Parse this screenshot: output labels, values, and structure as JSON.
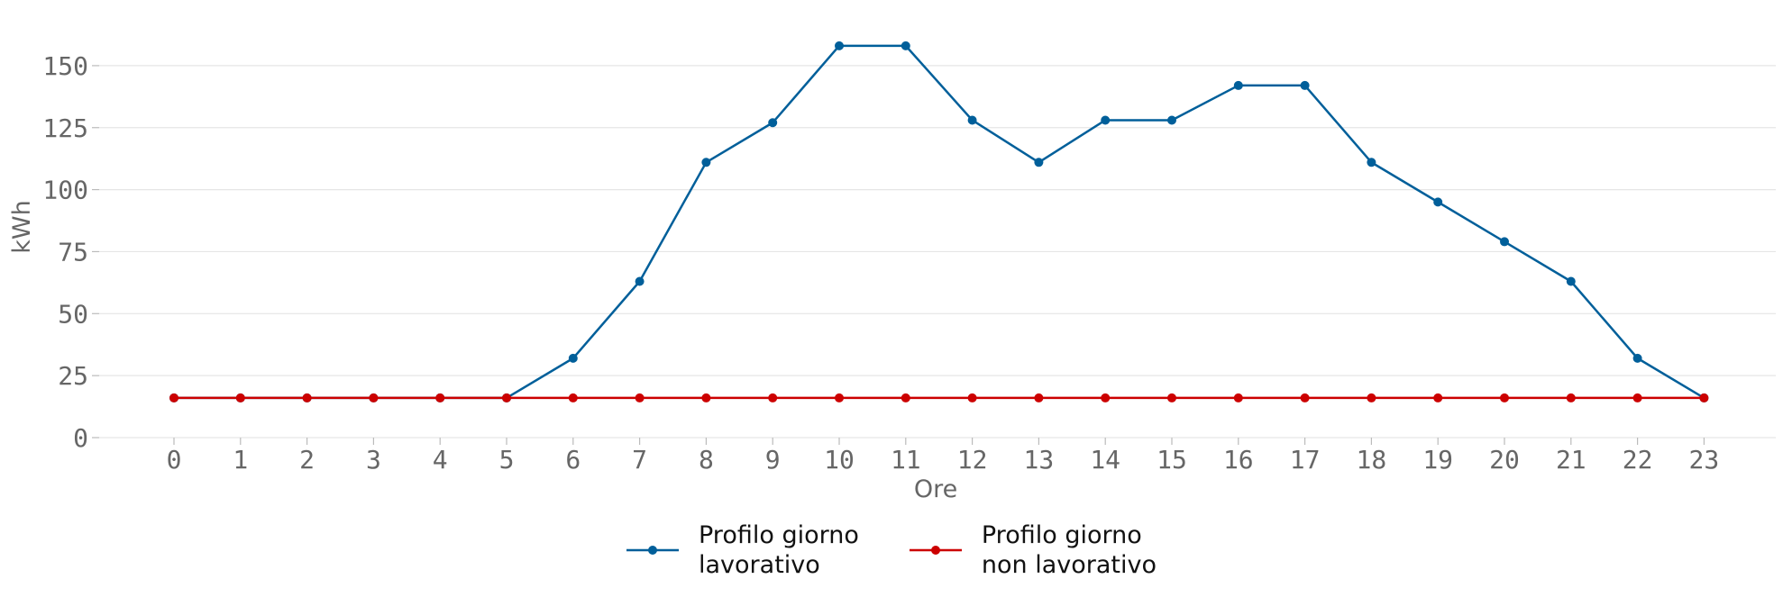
{
  "chart_data": {
    "type": "line",
    "xlabel": "Ore",
    "ylabel": "kWh",
    "x": [
      0,
      1,
      2,
      3,
      4,
      5,
      6,
      7,
      8,
      9,
      10,
      11,
      12,
      13,
      14,
      15,
      16,
      17,
      18,
      19,
      20,
      21,
      22,
      23
    ],
    "ylim": [
      0,
      165
    ],
    "yticks": [
      0,
      25,
      50,
      75,
      100,
      125,
      150
    ],
    "grid": "horizontal",
    "legend_position": "bottom",
    "series": [
      {
        "name": "Profilo giorno\nlavorativo",
        "color": "#005f9a",
        "values": [
          16,
          16,
          16,
          16,
          16,
          16,
          32,
          63,
          111,
          127,
          158,
          158,
          128,
          111,
          128,
          128,
          142,
          142,
          111,
          95,
          79,
          63,
          32,
          16
        ]
      },
      {
        "name": "Profilo giorno\nnon lavorativo",
        "color": "#cc0000",
        "values": [
          16,
          16,
          16,
          16,
          16,
          16,
          16,
          16,
          16,
          16,
          16,
          16,
          16,
          16,
          16,
          16,
          16,
          16,
          16,
          16,
          16,
          16,
          16,
          16
        ]
      }
    ]
  }
}
